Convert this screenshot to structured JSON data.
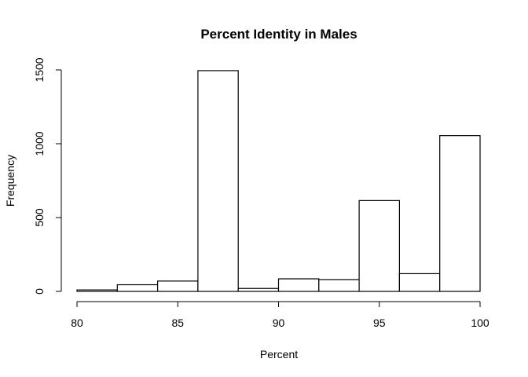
{
  "chart_data": {
    "type": "bar",
    "subtype": "histogram",
    "title": "Percent Identity in Males",
    "xlabel": "Percent",
    "ylabel": "Frequency",
    "xlim": [
      80,
      100
    ],
    "ylim": [
      0,
      1500
    ],
    "x_ticks": [
      80,
      85,
      90,
      95,
      100
    ],
    "y_ticks": [
      0,
      500,
      1000,
      1500
    ],
    "bins": [
      {
        "start": 80,
        "end": 82,
        "value": 10
      },
      {
        "start": 82,
        "end": 84,
        "value": 45
      },
      {
        "start": 84,
        "end": 86,
        "value": 70
      },
      {
        "start": 86,
        "end": 88,
        "value": 1495
      },
      {
        "start": 88,
        "end": 90,
        "value": 20
      },
      {
        "start": 90,
        "end": 92,
        "value": 85
      },
      {
        "start": 92,
        "end": 94,
        "value": 80
      },
      {
        "start": 94,
        "end": 96,
        "value": 615
      },
      {
        "start": 96,
        "end": 98,
        "value": 120
      },
      {
        "start": 98,
        "end": 100,
        "value": 1055
      }
    ],
    "bar_fill": "#ffffff",
    "bar_stroke": "#000000",
    "grid": false
  }
}
